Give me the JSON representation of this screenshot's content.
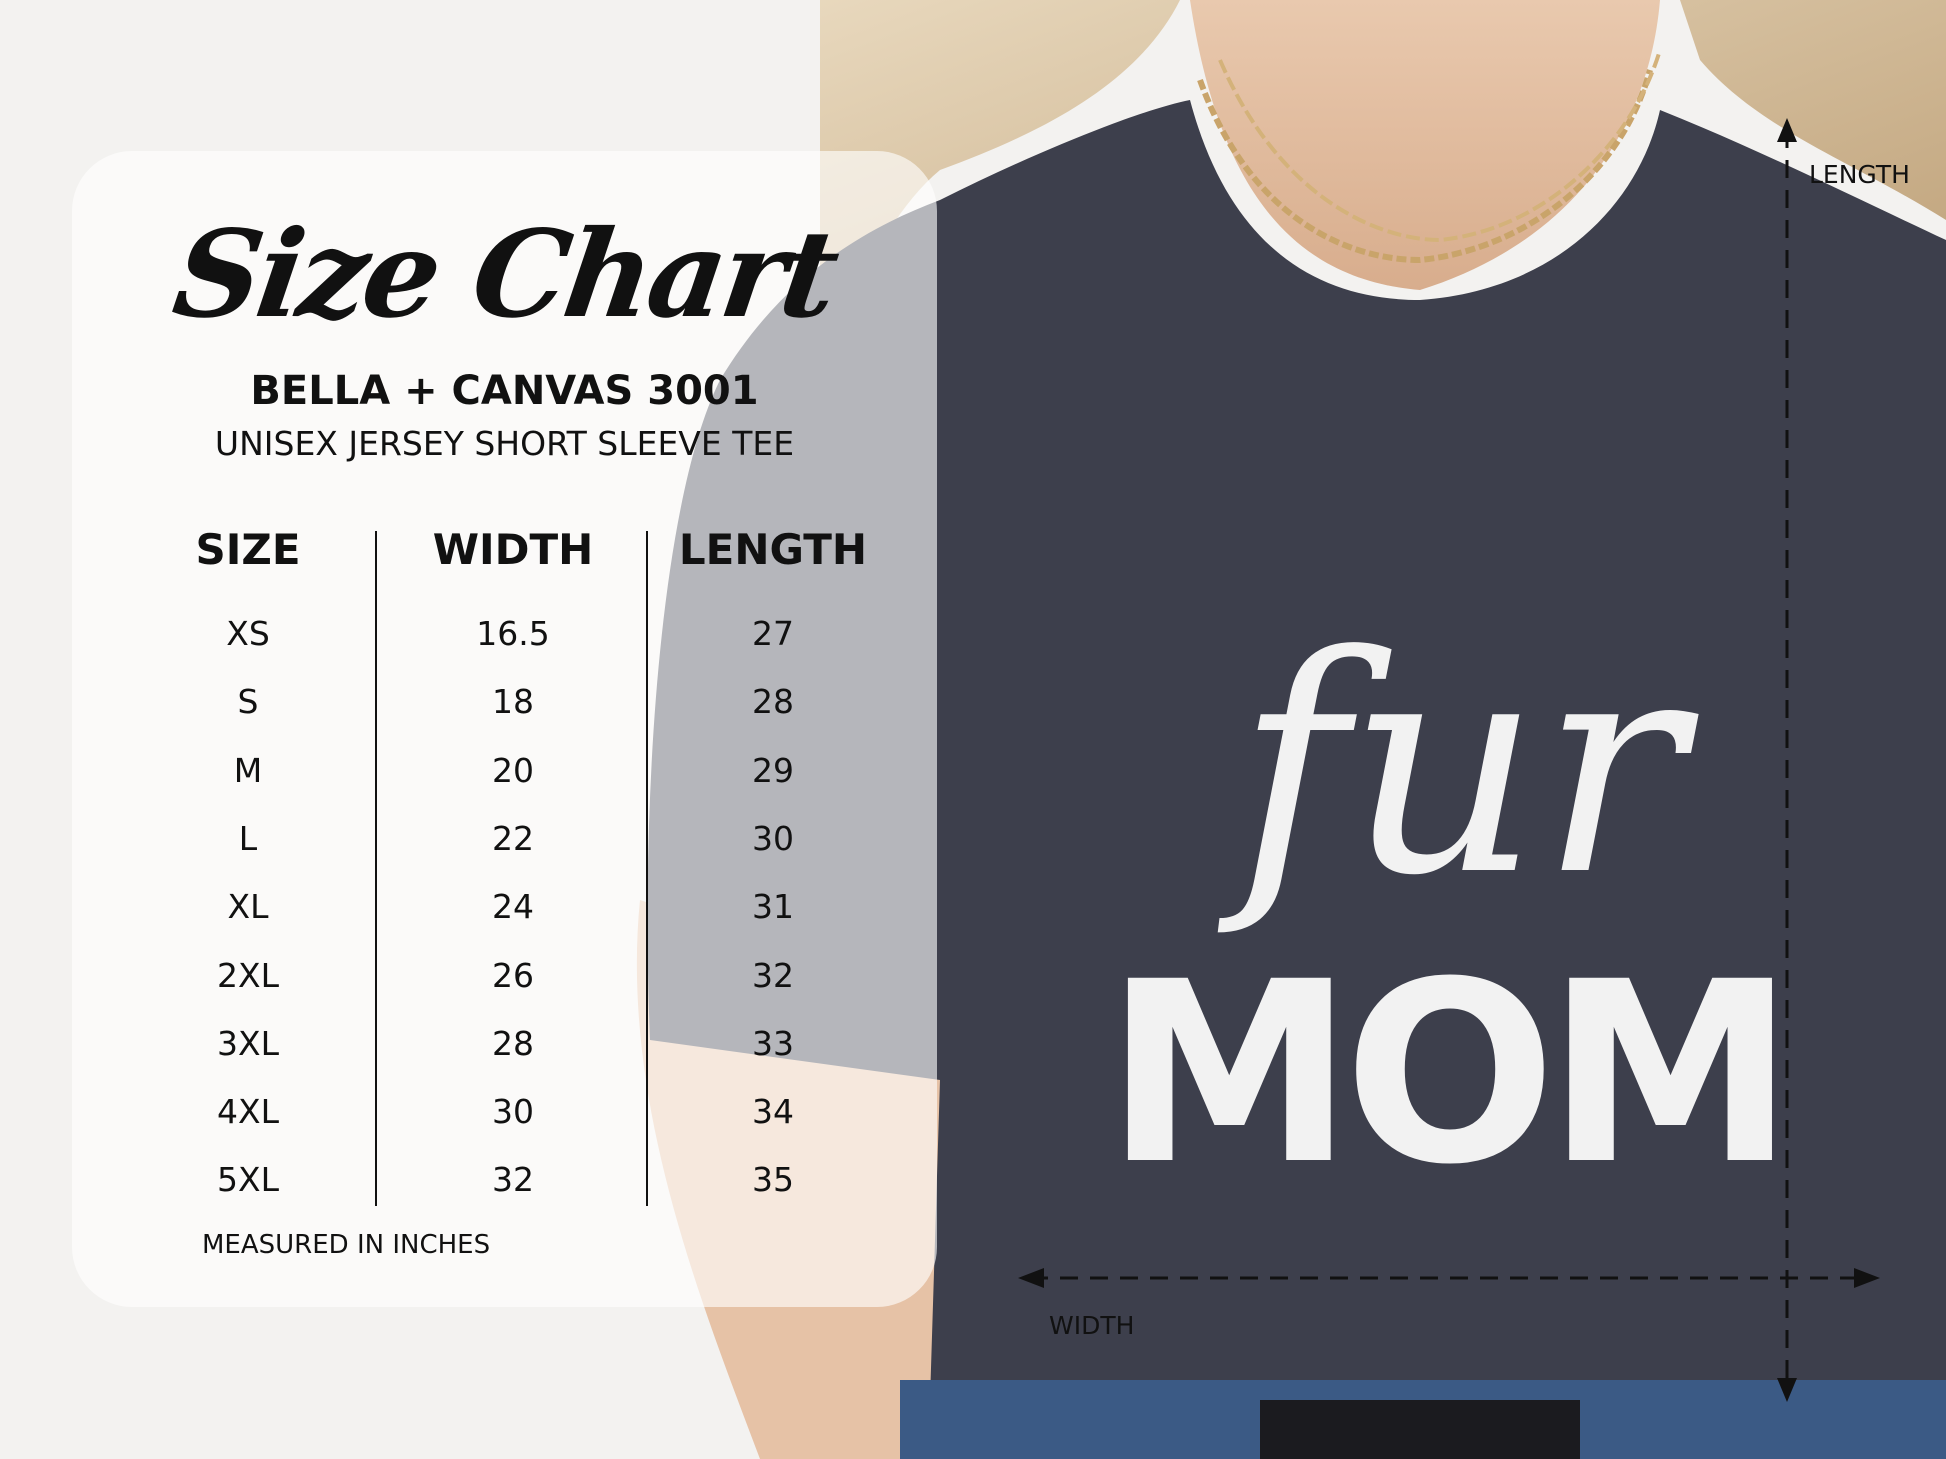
{
  "title": "Size Chart",
  "brand": "BELLA + CANVAS 3001",
  "model": "UNISEX JERSEY SHORT SLEEVE TEE",
  "table": {
    "headers": [
      "SIZE",
      "WIDTH",
      "LENGTH"
    ],
    "rows": [
      [
        "XS",
        "16.5",
        "27"
      ],
      [
        "S",
        "18",
        "28"
      ],
      [
        "M",
        "20",
        "29"
      ],
      [
        "L",
        "22",
        "30"
      ],
      [
        "XL",
        "24",
        "31"
      ],
      [
        "2XL",
        "26",
        "32"
      ],
      [
        "3XL",
        "28",
        "33"
      ],
      [
        "4XL",
        "30",
        "34"
      ],
      [
        "5XL",
        "32",
        "35"
      ]
    ]
  },
  "note": "MEASURED IN INCHES",
  "dimensions": {
    "length_label": "LENGTH",
    "width_label": "WIDTH"
  },
  "shirt_print": {
    "top": "fur",
    "bottom": "MOM"
  },
  "colors": {
    "shirt": "#3d3f4c",
    "text": "#111111",
    "print": "#f2f2f2",
    "hair": "#d9c3a0"
  }
}
